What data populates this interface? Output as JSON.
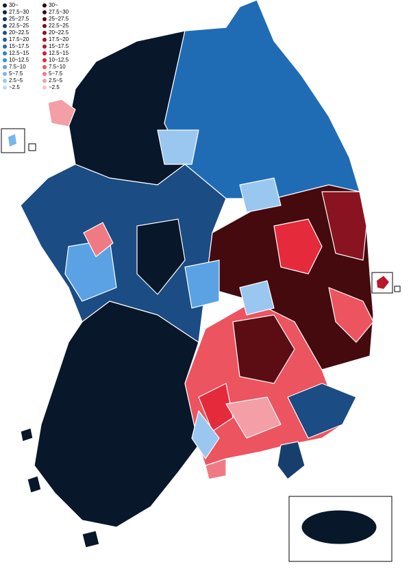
{
  "legend": {
    "blue": [
      {
        "label": "30~",
        "color": "#08172a"
      },
      {
        "label": "27.5~30",
        "color": "#0d2440"
      },
      {
        "label": "25~27.5",
        "color": "#123258"
      },
      {
        "label": "22.5~25",
        "color": "#173f6e"
      },
      {
        "label": "20~22.5",
        "color": "#1b4c84"
      },
      {
        "label": "17.5~20",
        "color": "#1d5c9c"
      },
      {
        "label": "15~17.5",
        "color": "#1f6cb5"
      },
      {
        "label": "12.5~15",
        "color": "#2a7fcf"
      },
      {
        "label": "10~12.5",
        "color": "#3b8fdc"
      },
      {
        "label": "7.5~10",
        "color": "#5aa2e3"
      },
      {
        "label": "5~7.5",
        "color": "#7ab5ea"
      },
      {
        "label": "2.5~5",
        "color": "#9ac7ef"
      },
      {
        "label": "~2.5",
        "color": "#bcdaf5"
      }
    ],
    "red": [
      {
        "label": "30~",
        "color": "#2e0508"
      },
      {
        "label": "27.5~30",
        "color": "#450a0e"
      },
      {
        "label": "25~27.5",
        "color": "#5c0d14"
      },
      {
        "label": "22.5~25",
        "color": "#72101a"
      },
      {
        "label": "20~22.5",
        "color": "#891320"
      },
      {
        "label": "17.5~20",
        "color": "#a01626"
      },
      {
        "label": "15~17.5",
        "color": "#b8182c"
      },
      {
        "label": "12.5~15",
        "color": "#d01c32"
      },
      {
        "label": "10~12.5",
        "color": "#e52a3c"
      },
      {
        "label": "7.5~10",
        "color": "#ec5460"
      },
      {
        "label": "5~7.5",
        "color": "#f07a84"
      },
      {
        "label": "2.5~5",
        "color": "#f49ea6"
      },
      {
        "label": "~2.5",
        "color": "#f8c2c7"
      }
    ]
  }
}
